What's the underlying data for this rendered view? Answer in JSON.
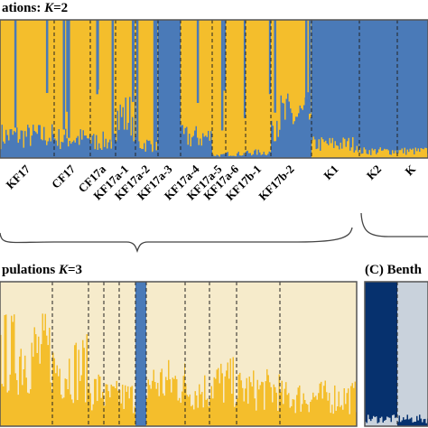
{
  "colors": {
    "gold": "#F4BE2C",
    "blue": "#4A7AB8",
    "cream": "#F6EBCB",
    "navy": "#06316E",
    "light_blue_gray": "#C9D2DC",
    "divider": "#222222",
    "frame": "#555555"
  },
  "chart_data": [
    {
      "id": "A",
      "type": "bar",
      "stacked": true,
      "title_prefix": "ations: ",
      "title_k": "K",
      "title_suffix": "=2",
      "series_colors": [
        "gold",
        "blue"
      ],
      "groups": [
        {
          "label": "KF17",
          "dominant": "gold",
          "minor_level": 0.16
        },
        {
          "label": "CF17",
          "dominant": "gold",
          "minor_level": 0.14
        },
        {
          "label": "CF17a",
          "dominant": "gold",
          "minor_level": 0.12
        },
        {
          "label": "KF17a-1",
          "dominant": "gold",
          "minor_level": 0.3
        },
        {
          "label": "KF17a-2",
          "dominant": "gold",
          "minor_level": 0.1
        },
        {
          "label": "KF17a-3",
          "dominant": "blue",
          "minor_level": 0.0
        },
        {
          "label": "KF17a-4",
          "dominant": "gold",
          "minor_level": 0.15
        },
        {
          "label": "KF17a-5",
          "dominant": "gold",
          "minor_level": 0.02
        },
        {
          "label": "KF17a-6",
          "dominant": "gold",
          "minor_level": 0.03
        },
        {
          "label": "KF17b-1",
          "dominant": "gold",
          "minor_level": 0.04
        },
        {
          "label": "KF17b-2",
          "dominant": "gold",
          "minor_level": 0.3
        },
        {
          "label": "K1",
          "dominant": "blue",
          "minor_level": 0.1
        },
        {
          "label": "K2",
          "dominant": "blue",
          "minor_level": 0.05
        },
        {
          "label": "K",
          "dominant": "blue",
          "minor_level": 0.05
        }
      ],
      "ylim": [
        0,
        1
      ]
    },
    {
      "id": "B",
      "type": "bar",
      "stacked": true,
      "title_prefix": "pulations ",
      "title_k": "K",
      "title_suffix": "=3",
      "series_colors": [
        "gold",
        "cream",
        "blue"
      ],
      "groups": [
        {
          "label": "KF17",
          "dominant": "cream",
          "minor_level": 0.5
        },
        {
          "label": "CF17",
          "dominant": "cream",
          "minor_level": 0.4
        },
        {
          "label": "CF17a",
          "dominant": "cream",
          "minor_level": 0.25
        },
        {
          "label": "KF17a-1",
          "dominant": "cream",
          "minor_level": 0.2
        },
        {
          "label": "KF17a-2",
          "dominant": "cream",
          "minor_level": 0.2
        },
        {
          "label": "KF17a-3",
          "dominant": "blue",
          "minor_level": 0.0
        },
        {
          "label": "KF17a-4",
          "dominant": "cream",
          "minor_level": 0.3
        },
        {
          "label": "KF17a-5",
          "dominant": "cream",
          "minor_level": 0.25
        },
        {
          "label": "KF17a-6",
          "dominant": "cream",
          "minor_level": 0.3
        },
        {
          "label": "KF17b-1",
          "dominant": "cream",
          "minor_level": 0.25
        },
        {
          "label": "KF17b-2",
          "dominant": "cream",
          "minor_level": 0.2
        }
      ],
      "ylim": [
        0,
        1
      ]
    },
    {
      "id": "C",
      "type": "bar",
      "stacked": true,
      "title_prefix": "(C) Benth",
      "series_colors": [
        "navy",
        "light_blue_gray"
      ],
      "groups": [
        {
          "label": "K1",
          "dominant": "navy",
          "minor_level": 0.05
        },
        {
          "label": "K2",
          "dominant": "light_blue_gray",
          "minor_level": 0.05
        }
      ],
      "ylim": [
        0,
        1
      ]
    }
  ]
}
